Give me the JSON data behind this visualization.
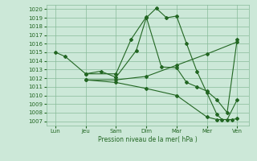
{
  "bg_color": "#cce8d8",
  "grid_color": "#88bb99",
  "line_color": "#226622",
  "x_labels": [
    "Lun",
    "Jeu",
    "Sam",
    "Dim",
    "Mar",
    "Mer",
    "Ven"
  ],
  "x_ticks": [
    0,
    1,
    2,
    3,
    4,
    5,
    6
  ],
  "xlabel": "Pression niveau de la mer( hPa )",
  "ylim": [
    1006.5,
    1020.5
  ],
  "yticks": [
    1007,
    1008,
    1009,
    1010,
    1011,
    1012,
    1013,
    1014,
    1015,
    1016,
    1017,
    1018,
    1019,
    1020
  ],
  "line1_x": [
    0,
    0.33,
    1.0,
    1.5,
    2.0,
    2.67,
    3.0,
    3.33,
    3.67,
    4.0,
    4.33,
    4.67,
    5.0,
    5.33,
    5.5,
    5.83,
    6.0
  ],
  "line1_y": [
    1015.0,
    1014.5,
    1012.5,
    1012.8,
    1012.1,
    1015.2,
    1019.0,
    1020.1,
    1019.0,
    1019.2,
    1016.0,
    1012.8,
    1010.3,
    1007.8,
    1007.2,
    1007.2,
    1007.3
  ],
  "line2_x": [
    1.0,
    2.0,
    2.5,
    3.0,
    3.5,
    4.0,
    4.33,
    4.67,
    5.0,
    5.33,
    5.67,
    6.0
  ],
  "line2_y": [
    1012.5,
    1012.5,
    1016.5,
    1019.1,
    1013.3,
    1013.2,
    1011.5,
    1011.0,
    1010.5,
    1009.5,
    1008.0,
    1016.5
  ],
  "line3_x": [
    1.0,
    2.0,
    3.0,
    4.0,
    5.0,
    6.0
  ],
  "line3_y": [
    1011.8,
    1011.8,
    1012.2,
    1013.5,
    1014.8,
    1016.2
  ],
  "line4_x": [
    1.0,
    2.0,
    3.0,
    4.0,
    5.0,
    5.33,
    5.67,
    6.0
  ],
  "line4_y": [
    1011.8,
    1011.5,
    1010.8,
    1010.0,
    1007.5,
    1007.2,
    1007.2,
    1009.5
  ]
}
